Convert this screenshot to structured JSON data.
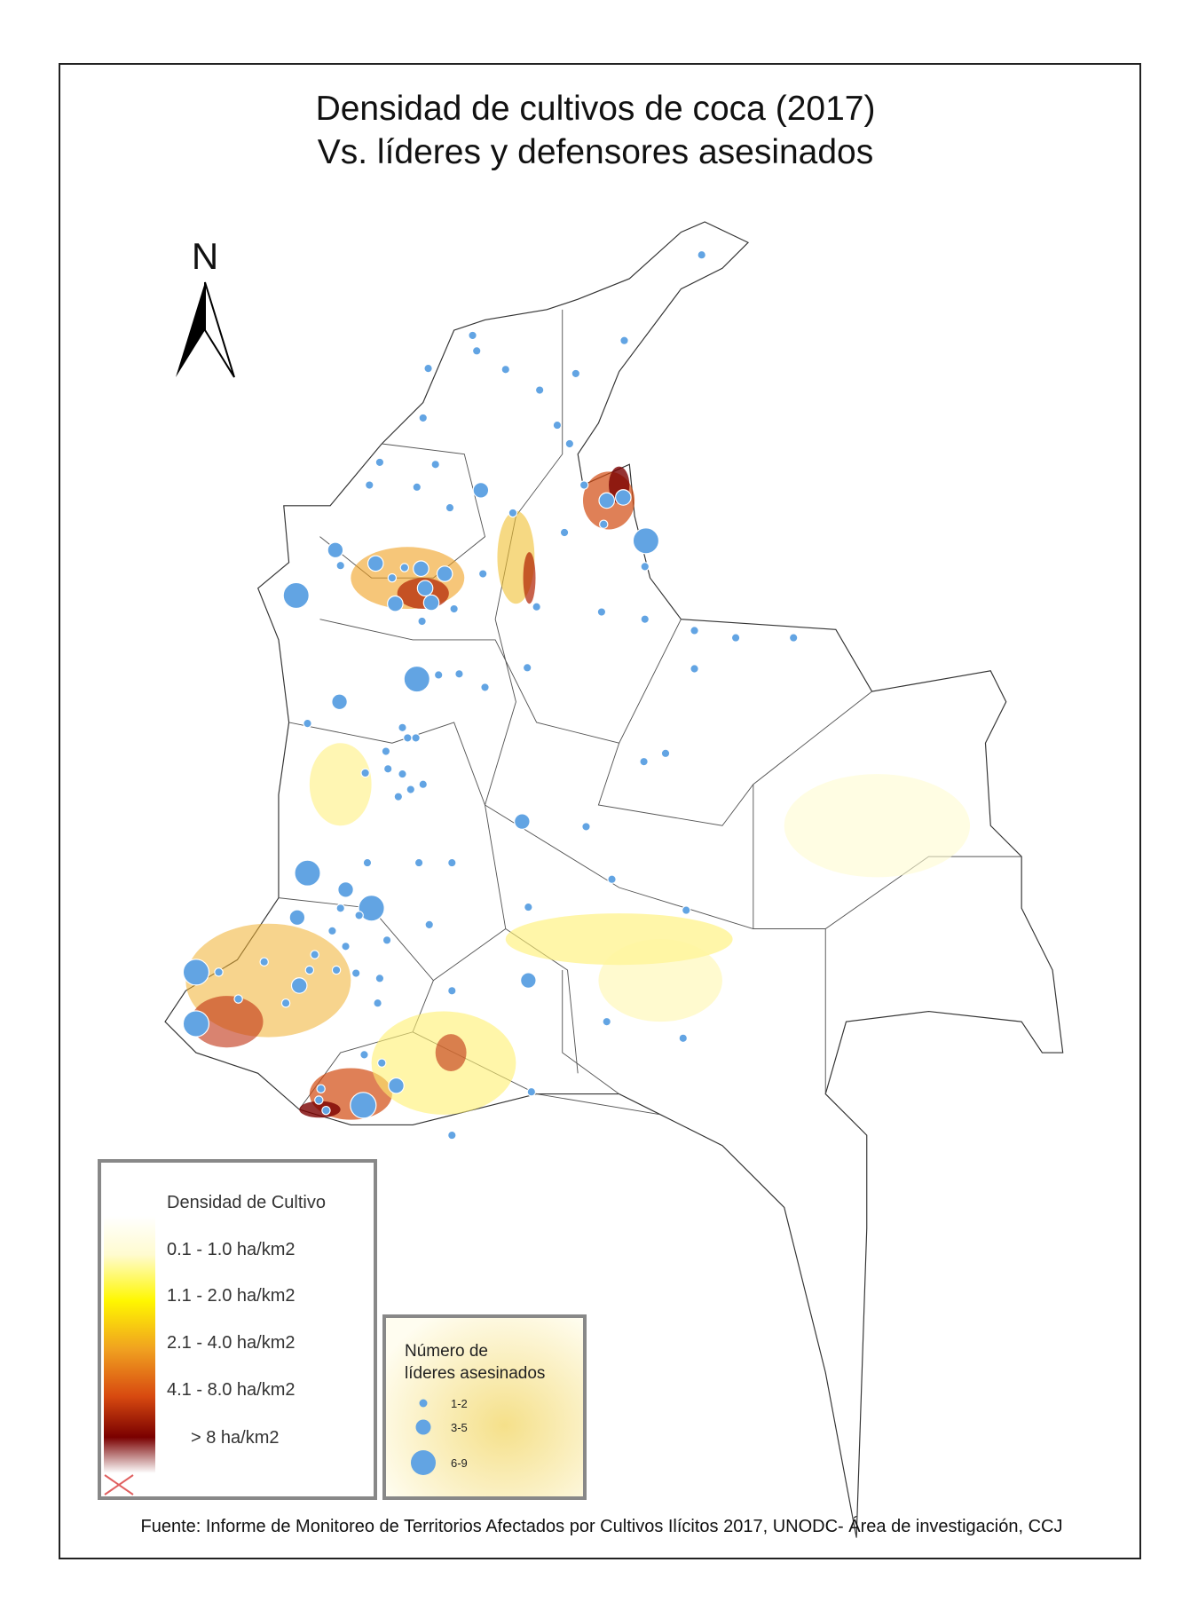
{
  "title": [
    "Densidad de cultivos de coca (2017)",
    "Vs. líderes y defensores asesinados"
  ],
  "north": "N",
  "legend_density": {
    "title": "Densidad de Cultivo",
    "items": [
      "0.1 - 1.0 ha/km2",
      "1.1 - 2.0 ha/km2",
      "2.1 - 4.0 ha/km2",
      "4.1 - 8.0 ha/km2",
      "> 8 ha/km2"
    ]
  },
  "legend_leaders": {
    "title": [
      "Número de",
      "líderes asesinados"
    ],
    "items": [
      "1-2",
      "3-5",
      "6-9"
    ]
  },
  "source": "Fuente: Informe de Monitoreo de Territorios Afectados por Cultivos Ilícitos 2017, UNODC- Área de investigación, CCJ"
}
